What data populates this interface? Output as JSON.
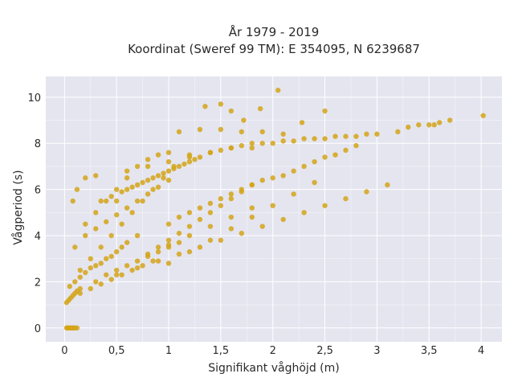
{
  "chart_data": {
    "type": "scatter",
    "title_lines": [
      "År 1979 - 2019",
      "Koordinat (Sweref 99 TM): E 354095, N 6239687"
    ],
    "xlabel": "Signifikant våghöjd (m)",
    "ylabel": "Vågperiod (s)",
    "xlim": [
      -0.18,
      4.2
    ],
    "ylim": [
      -0.6,
      10.9
    ],
    "x_ticks": [
      0,
      0.5,
      1,
      1.5,
      2,
      2.5,
      3,
      3.5,
      4
    ],
    "x_tick_labels": [
      "0",
      "0,5",
      "1",
      "1,5",
      "2",
      "2,5",
      "3",
      "3,5",
      "4"
    ],
    "y_ticks": [
      0,
      2,
      4,
      6,
      8,
      10
    ],
    "y_tick_labels": [
      "0",
      "2",
      "4",
      "6",
      "8",
      "10"
    ],
    "grid": true,
    "legend": "none",
    "colors": {
      "marker": "#D4A418",
      "plot_background": "#E5E5F0",
      "grid": "#FFFFFF"
    },
    "series": [
      {
        "x": [
          0.02,
          0.03,
          0.04,
          0.05,
          0.06,
          0.07,
          0.08,
          0.09,
          0.1,
          0.12,
          0.02,
          0.04,
          0.06,
          0.08,
          0.1,
          0.12,
          0.15,
          0.05,
          0.1,
          0.15,
          0.2,
          0.25,
          0.3,
          0.35,
          0.4,
          0.45,
          0.5,
          0.55,
          0.6,
          0.7,
          0.08,
          0.12,
          0.2,
          0.3,
          0.1,
          0.2,
          0.3,
          0.4,
          0.5,
          0.6,
          0.7,
          0.8,
          0.9,
          1.0,
          0.15,
          0.25,
          0.35,
          0.45,
          0.55,
          0.65,
          0.75,
          0.85,
          0.95,
          1.05,
          1.2,
          0.5,
          0.6,
          0.7,
          0.8,
          0.9,
          1.0,
          1.1,
          1.2,
          1.3,
          1.4,
          1.5,
          1.6,
          1.7,
          1.8,
          1.9,
          2.0,
          2.1,
          2.2,
          2.3,
          2.4,
          2.5,
          2.6,
          2.7,
          2.8,
          2.9,
          3.0,
          1.0,
          1.1,
          1.2,
          1.3,
          1.4,
          1.5,
          1.6,
          1.7,
          1.8,
          1.9,
          2.0,
          2.1,
          2.2,
          2.3,
          2.4,
          2.5,
          2.6,
          2.7,
          2.8,
          0.9,
          1.0,
          1.1,
          1.2,
          1.3,
          1.4,
          1.5,
          1.6,
          1.7,
          1.8,
          1.0,
          1.2,
          1.4,
          1.6,
          1.8,
          2.0,
          2.2,
          2.4,
          0.8,
          1.0,
          1.2,
          1.4,
          1.6,
          1.8,
          0.4,
          0.5,
          0.6,
          0.7,
          0.8,
          0.9,
          1.0,
          1.1,
          0.3,
          0.5,
          0.7,
          0.9,
          1.1,
          1.3,
          1.5,
          1.7,
          1.9,
          2.1,
          2.3,
          2.5,
          2.7,
          2.9,
          3.1,
          3.2,
          3.3,
          3.4,
          3.5,
          3.55,
          3.6,
          3.7,
          4.02,
          1.35,
          1.5,
          1.6,
          1.72,
          1.88,
          2.05,
          2.28,
          2.5,
          1.1,
          1.3,
          1.5,
          1.7,
          1.9,
          2.1,
          0.6,
          0.8,
          1.0,
          1.2,
          1.4,
          1.6,
          1.8,
          0.35,
          0.45,
          0.55,
          0.65,
          0.75,
          0.85,
          0.95,
          1.05,
          1.15,
          1.25,
          0.2,
          0.3,
          0.4,
          0.5,
          0.6,
          0.7,
          0.8,
          0.9,
          1.0,
          0.15,
          0.25,
          0.35,
          0.45,
          0.55,
          0.65,
          0.75,
          0.85
        ],
        "y": [
          0,
          0,
          0,
          0,
          0,
          0,
          0,
          0,
          0,
          0,
          1.1,
          1.2,
          1.3,
          1.4,
          1.5,
          1.6,
          1.7,
          1.8,
          2.0,
          2.2,
          2.4,
          2.6,
          2.7,
          2.8,
          3.0,
          3.1,
          3.3,
          3.5,
          3.7,
          4.0,
          5.5,
          6.0,
          6.5,
          6.6,
          3.5,
          4.5,
          5.0,
          5.5,
          6.0,
          6.5,
          7.0,
          7.3,
          7.5,
          7.6,
          2.5,
          3.0,
          3.5,
          4.0,
          4.5,
          5.0,
          5.5,
          6.0,
          6.5,
          7.0,
          7.5,
          5.5,
          6.0,
          6.2,
          6.4,
          6.6,
          6.8,
          7.0,
          7.2,
          7.4,
          7.6,
          7.7,
          7.8,
          7.9,
          8.0,
          8.0,
          8.0,
          8.1,
          8.1,
          8.2,
          8.2,
          8.2,
          8.3,
          8.3,
          8.3,
          8.4,
          8.4,
          4.5,
          4.8,
          5.0,
          5.2,
          5.4,
          5.6,
          5.8,
          6.0,
          6.2,
          6.4,
          6.5,
          6.6,
          6.8,
          7.0,
          7.2,
          7.4,
          7.5,
          7.7,
          7.9,
          3.5,
          3.8,
          4.1,
          4.4,
          4.7,
          5.0,
          5.3,
          5.6,
          5.9,
          6.2,
          2.8,
          3.3,
          3.8,
          4.3,
          4.8,
          5.3,
          5.8,
          6.3,
          3.2,
          3.6,
          4.0,
          4.4,
          4.8,
          5.2,
          2.3,
          2.5,
          2.7,
          2.9,
          3.1,
          3.3,
          3.5,
          3.7,
          2.0,
          2.3,
          2.6,
          2.9,
          3.2,
          3.5,
          3.8,
          4.1,
          4.4,
          4.7,
          5.0,
          5.3,
          5.6,
          5.9,
          6.2,
          8.5,
          8.7,
          8.8,
          8.8,
          8.8,
          8.9,
          9.0,
          9.2,
          9.6,
          9.7,
          9.4,
          9.0,
          9.5,
          10.3,
          8.9,
          9.4,
          8.5,
          8.6,
          8.6,
          8.5,
          8.5,
          8.4,
          6.8,
          7.0,
          7.2,
          7.4,
          7.6,
          7.8,
          7.8,
          5.5,
          5.7,
          5.9,
          6.1,
          6.3,
          6.5,
          6.7,
          6.9,
          7.1,
          7.3,
          4.0,
          4.3,
          4.6,
          4.9,
          5.2,
          5.5,
          5.8,
          6.1,
          6.4,
          1.5,
          1.7,
          1.9,
          2.1,
          2.3,
          2.5,
          2.7,
          2.9
        ]
      }
    ]
  }
}
